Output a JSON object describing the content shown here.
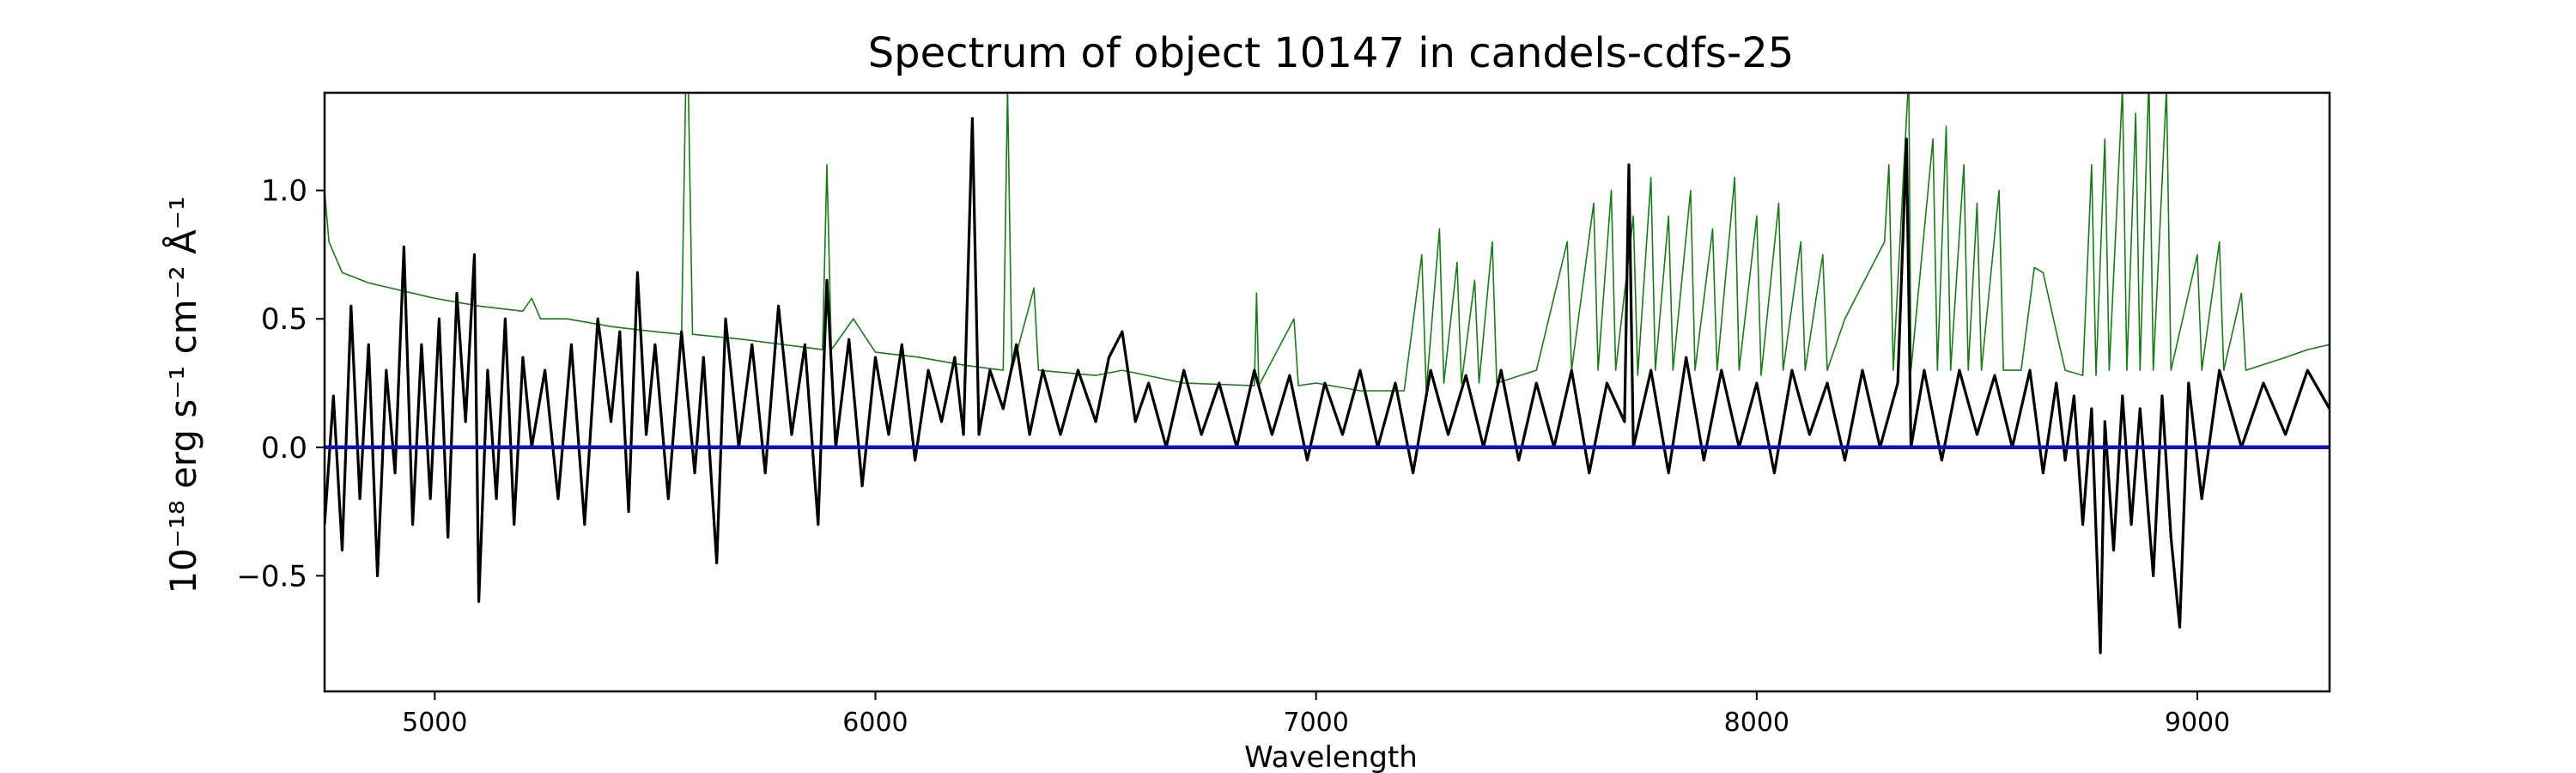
{
  "chart_data": {
    "type": "line",
    "title": "Spectrum of object 10147 in candels-cdfs-25",
    "xlabel": "Wavelength",
    "ylabel": "10⁻¹⁸ erg s⁻¹ cm⁻² Å⁻¹",
    "xlim": [
      4750,
      9300
    ],
    "ylim": [
      -0.95,
      1.38
    ],
    "xticks": [
      5000,
      6000,
      7000,
      8000,
      9000
    ],
    "yticks": [
      -0.5,
      0.0,
      0.5,
      1.0
    ],
    "ytick_labels": [
      "−0.5",
      "0.0",
      "0.5",
      "1.0"
    ],
    "grid": false,
    "series": [
      {
        "color": "#1a7a1a",
        "style": "thin-line",
        "points": [
          [
            4750,
            1.0
          ],
          [
            4760,
            0.8
          ],
          [
            4790,
            0.68
          ],
          [
            4850,
            0.64
          ],
          [
            4950,
            0.6
          ],
          [
            5000,
            0.58
          ],
          [
            5100,
            0.55
          ],
          [
            5200,
            0.53
          ],
          [
            5220,
            0.58
          ],
          [
            5240,
            0.5
          ],
          [
            5300,
            0.5
          ],
          [
            5400,
            0.47
          ],
          [
            5500,
            0.45
          ],
          [
            5560,
            0.44
          ],
          [
            5570,
            1.45
          ],
          [
            5575,
            1.45
          ],
          [
            5585,
            0.44
          ],
          [
            5700,
            0.42
          ],
          [
            5880,
            0.38
          ],
          [
            5890,
            1.1
          ],
          [
            5900,
            0.38
          ],
          [
            5950,
            0.5
          ],
          [
            6000,
            0.37
          ],
          [
            6100,
            0.35
          ],
          [
            6200,
            0.32
          ],
          [
            6290,
            0.3
          ],
          [
            6300,
            1.4
          ],
          [
            6310,
            0.3
          ],
          [
            6360,
            0.62
          ],
          [
            6370,
            0.3
          ],
          [
            6500,
            0.28
          ],
          [
            6560,
            0.3
          ],
          [
            6700,
            0.25
          ],
          [
            6860,
            0.24
          ],
          [
            6865,
            0.6
          ],
          [
            6870,
            0.24
          ],
          [
            6950,
            0.5
          ],
          [
            6960,
            0.24
          ],
          [
            7000,
            0.25
          ],
          [
            7100,
            0.22
          ],
          [
            7200,
            0.22
          ],
          [
            7240,
            0.75
          ],
          [
            7250,
            0.22
          ],
          [
            7280,
            0.85
          ],
          [
            7290,
            0.25
          ],
          [
            7320,
            0.72
          ],
          [
            7330,
            0.25
          ],
          [
            7360,
            0.65
          ],
          [
            7370,
            0.25
          ],
          [
            7400,
            0.8
          ],
          [
            7410,
            0.25
          ],
          [
            7500,
            0.3
          ],
          [
            7570,
            0.8
          ],
          [
            7580,
            0.3
          ],
          [
            7630,
            0.95
          ],
          [
            7640,
            0.3
          ],
          [
            7670,
            1.0
          ],
          [
            7680,
            0.3
          ],
          [
            7720,
            0.9
          ],
          [
            7730,
            0.28
          ],
          [
            7760,
            1.05
          ],
          [
            7770,
            0.3
          ],
          [
            7800,
            0.9
          ],
          [
            7810,
            0.3
          ],
          [
            7850,
            1.0
          ],
          [
            7860,
            0.3
          ],
          [
            7900,
            0.85
          ],
          [
            7910,
            0.3
          ],
          [
            7950,
            1.05
          ],
          [
            7960,
            0.3
          ],
          [
            8000,
            0.9
          ],
          [
            8010,
            0.28
          ],
          [
            8050,
            0.95
          ],
          [
            8060,
            0.3
          ],
          [
            8100,
            0.8
          ],
          [
            8110,
            0.3
          ],
          [
            8150,
            0.75
          ],
          [
            8160,
            0.3
          ],
          [
            8200,
            0.5
          ],
          [
            8290,
            0.8
          ],
          [
            8300,
            1.1
          ],
          [
            8310,
            0.3
          ],
          [
            8345,
            1.45
          ],
          [
            8350,
            0.3
          ],
          [
            8400,
            1.2
          ],
          [
            8410,
            0.3
          ],
          [
            8430,
            1.25
          ],
          [
            8440,
            0.3
          ],
          [
            8470,
            1.1
          ],
          [
            8480,
            0.3
          ],
          [
            8500,
            0.95
          ],
          [
            8510,
            0.3
          ],
          [
            8550,
            1.0
          ],
          [
            8560,
            0.3
          ],
          [
            8600,
            0.3
          ],
          [
            8630,
            0.7
          ],
          [
            8650,
            0.68
          ],
          [
            8680,
            0.45
          ],
          [
            8700,
            0.3
          ],
          [
            8740,
            0.28
          ],
          [
            8760,
            1.1
          ],
          [
            8770,
            0.28
          ],
          [
            8790,
            1.2
          ],
          [
            8800,
            0.3
          ],
          [
            8830,
            1.4
          ],
          [
            8840,
            0.3
          ],
          [
            8860,
            1.3
          ],
          [
            8870,
            0.3
          ],
          [
            8890,
            1.45
          ],
          [
            8900,
            0.3
          ],
          [
            8930,
            1.4
          ],
          [
            8940,
            0.3
          ],
          [
            9000,
            0.75
          ],
          [
            9010,
            0.3
          ],
          [
            9050,
            0.8
          ],
          [
            9060,
            0.3
          ],
          [
            9100,
            0.6
          ],
          [
            9110,
            0.3
          ],
          [
            9200,
            0.35
          ],
          [
            9250,
            0.38
          ],
          [
            9300,
            0.4
          ]
        ]
      },
      {
        "color": "#000000",
        "style": "line",
        "points": [
          [
            4750,
            -0.3
          ],
          [
            4770,
            0.2
          ],
          [
            4790,
            -0.4
          ],
          [
            4810,
            0.55
          ],
          [
            4830,
            -0.2
          ],
          [
            4850,
            0.4
          ],
          [
            4870,
            -0.5
          ],
          [
            4890,
            0.3
          ],
          [
            4910,
            -0.1
          ],
          [
            4930,
            0.78
          ],
          [
            4950,
            -0.3
          ],
          [
            4970,
            0.4
          ],
          [
            4990,
            -0.2
          ],
          [
            5010,
            0.5
          ],
          [
            5030,
            -0.35
          ],
          [
            5050,
            0.6
          ],
          [
            5070,
            0.1
          ],
          [
            5090,
            0.75
          ],
          [
            5100,
            -0.6
          ],
          [
            5120,
            0.3
          ],
          [
            5140,
            -0.2
          ],
          [
            5160,
            0.5
          ],
          [
            5180,
            -0.3
          ],
          [
            5200,
            0.35
          ],
          [
            5220,
            0.0
          ],
          [
            5250,
            0.3
          ],
          [
            5280,
            -0.2
          ],
          [
            5310,
            0.4
          ],
          [
            5340,
            -0.3
          ],
          [
            5370,
            0.5
          ],
          [
            5400,
            0.1
          ],
          [
            5420,
            0.45
          ],
          [
            5440,
            -0.25
          ],
          [
            5460,
            0.68
          ],
          [
            5480,
            0.05
          ],
          [
            5500,
            0.4
          ],
          [
            5530,
            -0.2
          ],
          [
            5560,
            0.45
          ],
          [
            5590,
            -0.1
          ],
          [
            5610,
            0.35
          ],
          [
            5640,
            -0.45
          ],
          [
            5660,
            0.5
          ],
          [
            5690,
            0.0
          ],
          [
            5720,
            0.4
          ],
          [
            5750,
            -0.1
          ],
          [
            5780,
            0.55
          ],
          [
            5810,
            0.05
          ],
          [
            5840,
            0.4
          ],
          [
            5870,
            -0.3
          ],
          [
            5890,
            0.65
          ],
          [
            5910,
            0.0
          ],
          [
            5940,
            0.42
          ],
          [
            5970,
            -0.15
          ],
          [
            6000,
            0.35
          ],
          [
            6030,
            0.05
          ],
          [
            6060,
            0.4
          ],
          [
            6090,
            -0.05
          ],
          [
            6120,
            0.3
          ],
          [
            6150,
            0.1
          ],
          [
            6180,
            0.35
          ],
          [
            6200,
            0.05
          ],
          [
            6220,
            1.28
          ],
          [
            6235,
            0.05
          ],
          [
            6260,
            0.3
          ],
          [
            6290,
            0.15
          ],
          [
            6320,
            0.4
          ],
          [
            6350,
            0.05
          ],
          [
            6380,
            0.3
          ],
          [
            6420,
            0.05
          ],
          [
            6460,
            0.3
          ],
          [
            6500,
            0.1
          ],
          [
            6530,
            0.35
          ],
          [
            6560,
            0.45
          ],
          [
            6590,
            0.1
          ],
          [
            6620,
            0.25
          ],
          [
            6660,
            0.0
          ],
          [
            6700,
            0.3
          ],
          [
            6740,
            0.05
          ],
          [
            6780,
            0.25
          ],
          [
            6820,
            0.0
          ],
          [
            6860,
            0.3
          ],
          [
            6900,
            0.05
          ],
          [
            6940,
            0.28
          ],
          [
            6980,
            -0.05
          ],
          [
            7020,
            0.25
          ],
          [
            7060,
            0.05
          ],
          [
            7100,
            0.3
          ],
          [
            7140,
            0.0
          ],
          [
            7180,
            0.25
          ],
          [
            7220,
            -0.1
          ],
          [
            7260,
            0.3
          ],
          [
            7300,
            0.05
          ],
          [
            7340,
            0.28
          ],
          [
            7380,
            0.0
          ],
          [
            7420,
            0.3
          ],
          [
            7460,
            -0.05
          ],
          [
            7500,
            0.25
          ],
          [
            7540,
            0.0
          ],
          [
            7580,
            0.3
          ],
          [
            7620,
            -0.1
          ],
          [
            7660,
            0.25
          ],
          [
            7700,
            0.1
          ],
          [
            7710,
            1.1
          ],
          [
            7720,
            0.0
          ],
          [
            7760,
            0.3
          ],
          [
            7800,
            -0.1
          ],
          [
            7840,
            0.35
          ],
          [
            7880,
            -0.05
          ],
          [
            7920,
            0.3
          ],
          [
            7960,
            0.0
          ],
          [
            8000,
            0.25
          ],
          [
            8040,
            -0.1
          ],
          [
            8080,
            0.3
          ],
          [
            8120,
            0.05
          ],
          [
            8160,
            0.25
          ],
          [
            8200,
            -0.05
          ],
          [
            8240,
            0.3
          ],
          [
            8280,
            0.0
          ],
          [
            8320,
            0.25
          ],
          [
            8340,
            1.2
          ],
          [
            8350,
            0.0
          ],
          [
            8380,
            0.3
          ],
          [
            8420,
            -0.05
          ],
          [
            8460,
            0.3
          ],
          [
            8500,
            0.05
          ],
          [
            8540,
            0.28
          ],
          [
            8580,
            0.0
          ],
          [
            8620,
            0.3
          ],
          [
            8650,
            -0.1
          ],
          [
            8680,
            0.25
          ],
          [
            8700,
            -0.05
          ],
          [
            8720,
            0.2
          ],
          [
            8740,
            -0.3
          ],
          [
            8760,
            0.15
          ],
          [
            8780,
            -0.8
          ],
          [
            8790,
            0.1
          ],
          [
            8810,
            -0.4
          ],
          [
            8830,
            0.2
          ],
          [
            8850,
            -0.3
          ],
          [
            8870,
            0.15
          ],
          [
            8900,
            -0.5
          ],
          [
            8920,
            0.2
          ],
          [
            8940,
            -0.35
          ],
          [
            8960,
            -0.7
          ],
          [
            8980,
            0.25
          ],
          [
            9010,
            -0.2
          ],
          [
            9050,
            0.3
          ],
          [
            9100,
            0.0
          ],
          [
            9150,
            0.25
          ],
          [
            9200,
            0.05
          ],
          [
            9250,
            0.3
          ],
          [
            9300,
            0.15
          ]
        ]
      },
      {
        "color": "#1010c0",
        "style": "thick-line",
        "points": [
          [
            4750,
            0.0
          ],
          [
            9300,
            0.0
          ]
        ]
      }
    ]
  }
}
